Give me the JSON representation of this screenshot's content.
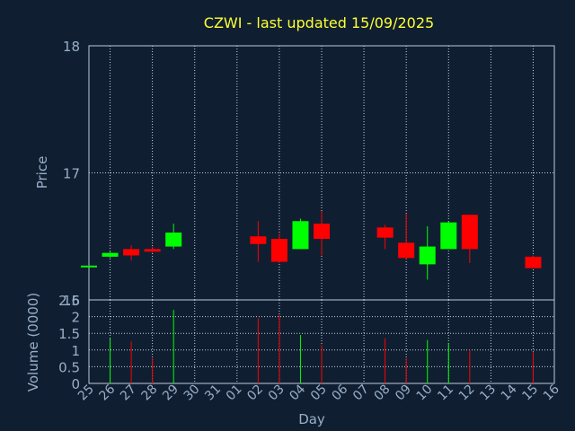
{
  "chart_data": [
    {
      "type": "candlestick",
      "title": "CZWI - last updated 15/09/2025",
      "ylabel": "Price",
      "ylim": [
        16,
        18
      ],
      "yticks": [
        "16",
        "17",
        "18"
      ],
      "grid": true,
      "colors": {
        "up": "#00ff00",
        "down": "#ff0000",
        "background": "#0f1f31",
        "plot_border": "#c0c8d8",
        "text": "#9aaec8",
        "title": "#ffff33"
      },
      "categories": [
        "25",
        "26",
        "27",
        "28",
        "29",
        "30",
        "31",
        "01",
        "02",
        "03",
        "04",
        "05",
        "06",
        "07",
        "08",
        "09",
        "10",
        "11",
        "12",
        "13",
        "14",
        "15",
        "16"
      ],
      "candles": [
        {
          "x": "25",
          "open": 16.26,
          "high": 16.27,
          "low": 16.26,
          "close": 16.27
        },
        {
          "x": "26",
          "open": 16.34,
          "high": 16.38,
          "low": 16.33,
          "close": 16.37
        },
        {
          "x": "27",
          "open": 16.4,
          "high": 16.43,
          "low": 16.31,
          "close": 16.35
        },
        {
          "x": "28",
          "open": 16.4,
          "high": 16.42,
          "low": 16.37,
          "close": 16.38
        },
        {
          "x": "29",
          "open": 16.42,
          "high": 16.6,
          "low": 16.4,
          "close": 16.53
        },
        {
          "x": "02",
          "open": 16.5,
          "high": 16.62,
          "low": 16.3,
          "close": 16.44
        },
        {
          "x": "03",
          "open": 16.48,
          "high": 16.52,
          "low": 16.29,
          "close": 16.3
        },
        {
          "x": "04",
          "open": 16.4,
          "high": 16.64,
          "low": 16.4,
          "close": 16.62
        },
        {
          "x": "05",
          "open": 16.6,
          "high": 16.7,
          "low": 16.35,
          "close": 16.48
        },
        {
          "x": "08",
          "open": 16.57,
          "high": 16.59,
          "low": 16.4,
          "close": 16.49
        },
        {
          "x": "09",
          "open": 16.45,
          "high": 16.68,
          "low": 16.32,
          "close": 16.33
        },
        {
          "x": "10",
          "open": 16.28,
          "high": 16.58,
          "low": 16.16,
          "close": 16.42
        },
        {
          "x": "11",
          "open": 16.4,
          "high": 16.62,
          "low": 16.4,
          "close": 16.61
        },
        {
          "x": "12",
          "open": 16.67,
          "high": 16.67,
          "low": 16.29,
          "close": 16.4
        },
        {
          "x": "15",
          "open": 16.34,
          "high": 16.35,
          "low": 16.25,
          "close": 16.25
        }
      ]
    },
    {
      "type": "bar",
      "ylabel": "Volume (0000)",
      "xlabel": "Day",
      "ylim": [
        0,
        2.5
      ],
      "yticks": [
        "0",
        "0.5",
        "1",
        "1.5",
        "2",
        "2.5"
      ],
      "categories": [
        "25",
        "26",
        "27",
        "28",
        "29",
        "30",
        "31",
        "01",
        "02",
        "03",
        "04",
        "05",
        "06",
        "07",
        "08",
        "09",
        "10",
        "11",
        "12",
        "13",
        "14",
        "15",
        "16"
      ],
      "bars": [
        {
          "x": "26",
          "value": 1.35,
          "direction": "up"
        },
        {
          "x": "27",
          "value": 1.25,
          "direction": "down"
        },
        {
          "x": "28",
          "value": 0.75,
          "direction": "down"
        },
        {
          "x": "29",
          "value": 2.2,
          "direction": "up"
        },
        {
          "x": "02",
          "value": 1.95,
          "direction": "down"
        },
        {
          "x": "03",
          "value": 2.05,
          "direction": "down"
        },
        {
          "x": "04",
          "value": 1.45,
          "direction": "up"
        },
        {
          "x": "05",
          "value": 1.15,
          "direction": "down"
        },
        {
          "x": "08",
          "value": 1.35,
          "direction": "down"
        },
        {
          "x": "09",
          "value": 0.75,
          "direction": "down"
        },
        {
          "x": "10",
          "value": 1.3,
          "direction": "up"
        },
        {
          "x": "11",
          "value": 1.2,
          "direction": "up"
        },
        {
          "x": "12",
          "value": 1.0,
          "direction": "down"
        },
        {
          "x": "15",
          "value": 0.95,
          "direction": "down"
        }
      ]
    }
  ]
}
